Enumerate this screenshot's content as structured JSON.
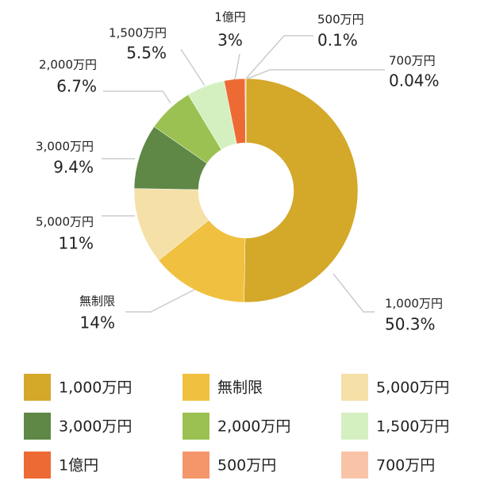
{
  "chart_data": {
    "type": "donut",
    "categories": [
      "1,000万円",
      "無制限",
      "5,000万円",
      "3,000万円",
      "2,000万円",
      "1,500万円",
      "1億円",
      "500万円",
      "700万円"
    ],
    "values": [
      50.3,
      14,
      11,
      9.4,
      6.7,
      5.5,
      3,
      0.1,
      0.04
    ],
    "value_labels": [
      "50.3%",
      "14%",
      "11%",
      "9.4%",
      "6.7%",
      "5.5%",
      "3%",
      "0.1%",
      "0.04%"
    ],
    "colors": [
      "#d4a829",
      "#f0c040",
      "#f5e0a8",
      "#5f8847",
      "#9bc152",
      "#d5f0c0",
      "#ee6a35",
      "#f4956a",
      "#f9c3a8"
    ]
  }
}
